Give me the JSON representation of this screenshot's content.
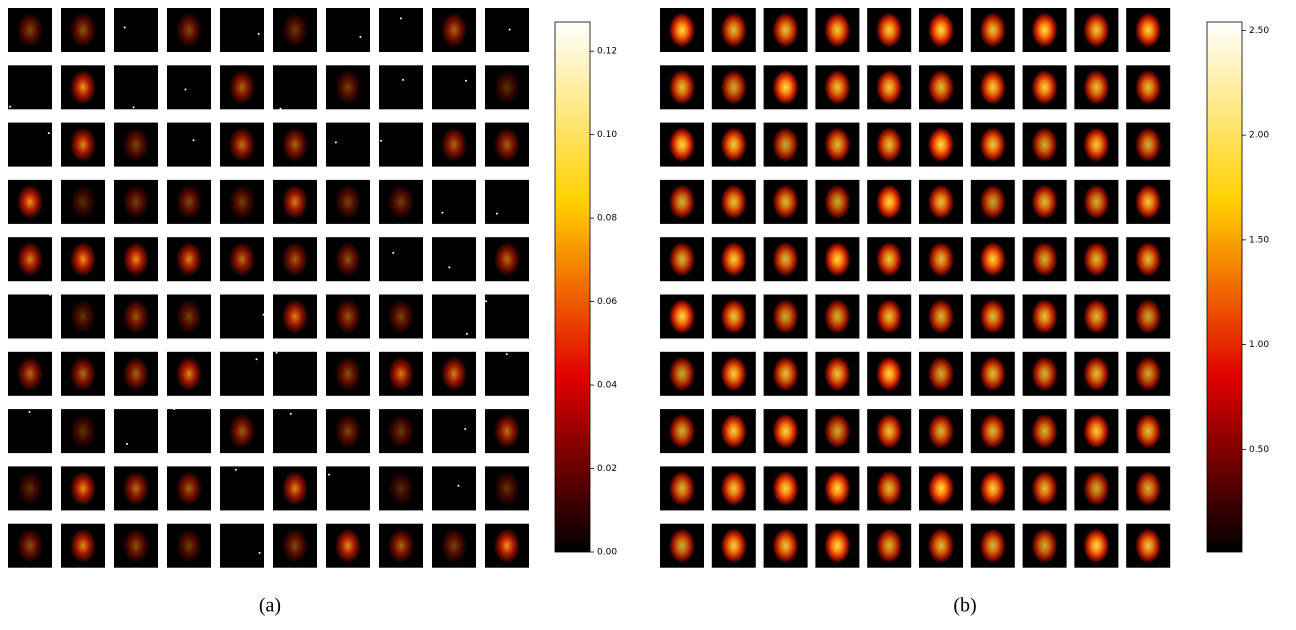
{
  "figure": {
    "captions": [
      "(a)",
      "(b)"
    ]
  },
  "chart_data": [
    {
      "type": "colorbar",
      "ylim": [
        0,
        0.127
      ],
      "yticks": [
        {
          "value": 0,
          "label": "0.00"
        },
        {
          "value": 0.02,
          "label": "0.02"
        },
        {
          "value": 0.04,
          "label": "0.04"
        },
        {
          "value": 0.06,
          "label": "0.06"
        },
        {
          "value": 0.08,
          "label": "0.08"
        },
        {
          "value": 0.1,
          "label": "0.10"
        },
        {
          "value": 0.12,
          "label": "0.12"
        }
      ]
    },
    {
      "type": "colorbar",
      "ylim": [
        0.01,
        2.54
      ],
      "yticks": [
        {
          "value": 0.5,
          "label": "0.50"
        },
        {
          "value": 1,
          "label": "1.00"
        },
        {
          "value": 1.5,
          "label": "1.50"
        },
        {
          "value": 2,
          "label": "2.00"
        },
        {
          "value": 2.5,
          "label": "2.50"
        }
      ]
    }
  ]
}
